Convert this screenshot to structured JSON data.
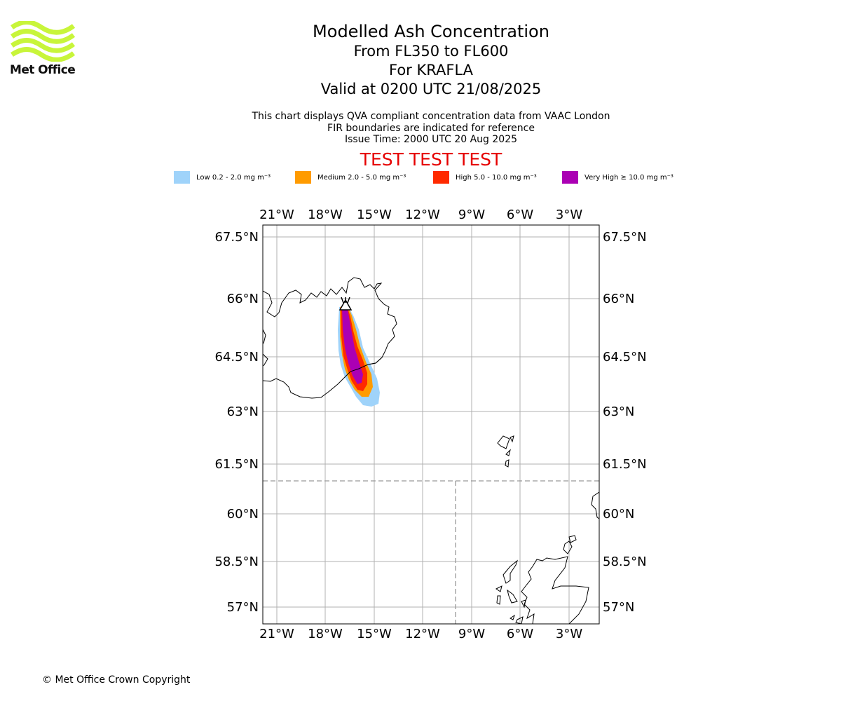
{
  "brand": {
    "name": "Met Office",
    "logo_icon": "met-office-wave-logo",
    "logo_color": "#c8f53a"
  },
  "header": {
    "title": "Modelled Ash Concentration",
    "level_range": "From FL350 to FL600",
    "volcano": "For KRAFLA",
    "valid_time": "Valid at 0200 UTC 21/08/2025"
  },
  "subtitle": {
    "line1": "This chart displays QVA compliant concentration data from VAAC London",
    "line2": "FIR boundaries are indicated for reference",
    "line3": "Issue Time: 2000 UTC 20 Aug 2025"
  },
  "banner": {
    "text": "TEST TEST TEST",
    "color": "#e60000"
  },
  "legend": [
    {
      "label": "Low 0.2 - 2.0 mg m⁻³",
      "color": "#9fd3fa"
    },
    {
      "label": "Medium 2.0 - 5.0 mg m⁻³",
      "color": "#ff9b00"
    },
    {
      "label": "High 5.0 - 10.0 mg m⁻³",
      "color": "#ff2a00"
    },
    {
      "label": "Very High  ≥  10.0 mg m⁻³",
      "color": "#ab00b4"
    }
  ],
  "map": {
    "lon_ticks": [
      "21°W",
      "18°W",
      "15°W",
      "12°W",
      "9°W",
      "6°W",
      "3°W"
    ],
    "lat_ticks": [
      "67.5°N",
      "66°N",
      "64.5°N",
      "63°N",
      "61.5°N",
      "60°N",
      "58.5°N",
      "57°N"
    ],
    "volcano_marker_icon": "volcano-icon",
    "gridlines": true,
    "fir_boundaries": "dashed grey"
  },
  "footer": {
    "copyright": "© Met Office Crown Copyright"
  }
}
